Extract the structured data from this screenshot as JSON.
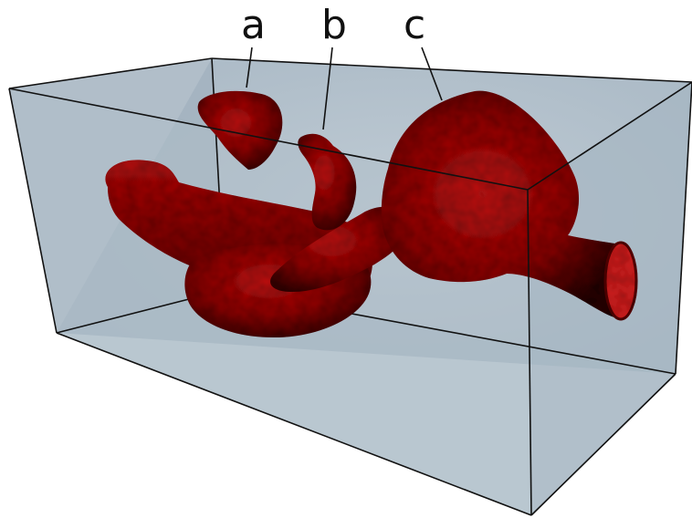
{
  "labels": {
    "a": "a",
    "b": "b",
    "c": "c"
  },
  "colors": {
    "box_face": "#a9b8c4",
    "box_edge": "#111111",
    "vessel_dark": "#3a0404",
    "vessel_mid": "#8e0b0b",
    "vessel_light": "#d21a1a"
  }
}
